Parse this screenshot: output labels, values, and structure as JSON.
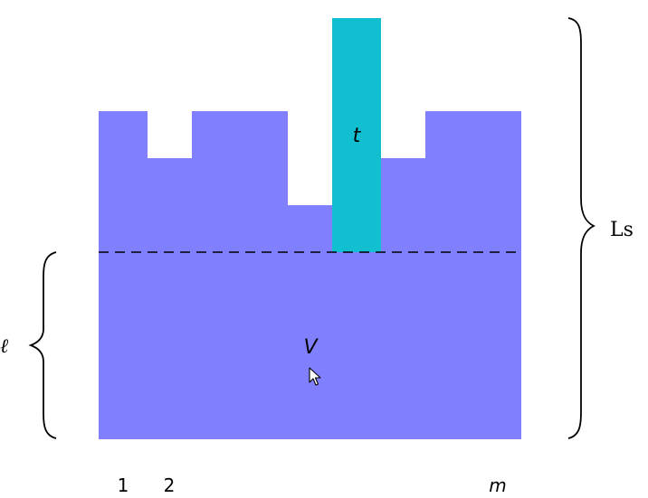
{
  "labels": {
    "t": "t",
    "v": "V",
    "ls": "Ls",
    "ell": "ℓ"
  },
  "indices": {
    "first": "1",
    "second": "2",
    "last": "m"
  },
  "colors": {
    "region": "#8080ff",
    "bar": "#12bfd1"
  },
  "icons": {
    "cursor": "mouse-pointer-icon"
  }
}
